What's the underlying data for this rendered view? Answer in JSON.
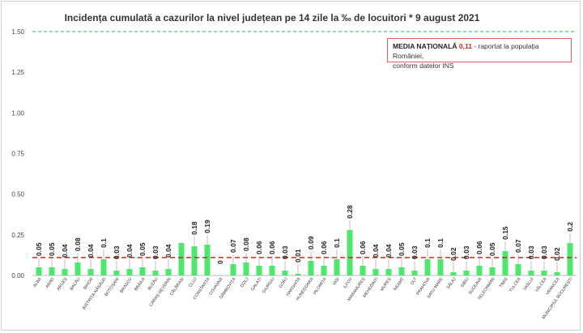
{
  "chart_data": {
    "type": "bar",
    "title": "Incidența cumulată a cazurilor la nivel județean pe 14 zile la ‰ de locuitori *  9 august 2021",
    "xlabel": "",
    "ylabel": "",
    "ylim": [
      0,
      1.5
    ],
    "yticks": [
      "0.00",
      "0.25",
      "0.50",
      "0.75",
      "1.00",
      "1.25",
      "1.50"
    ],
    "grid": false,
    "categories": [
      "ALBA",
      "ARAD",
      "ARGEȘ",
      "BACĂU",
      "BIHOR",
      "BISTRIȚA-NĂSĂUD",
      "BOTOȘANI",
      "BRAȘOV",
      "BRĂILA",
      "BUZĂU",
      "CARAȘ-SEVERIN",
      "CĂLĂRAȘI",
      "CLUJ",
      "CONSTANȚA",
      "COVASNA",
      "DÂMBOVIȚA",
      "DOLJ",
      "GALAȚI",
      "GIURGIU",
      "GORJ",
      "HARGHITA",
      "HUNEDOARA",
      "IALOMIȚA",
      "IAȘI",
      "ILFOV",
      "MARAMUREȘ",
      "MEHEDINȚI",
      "MUREȘ",
      "NEAMȚ",
      "OLT",
      "PRAHOVA",
      "SATU MARE",
      "SĂLAJ",
      "SIBIU",
      "SUCEAVA",
      "TELEORMAN",
      "TIMIȘ",
      "TULCEA",
      "VASLUI",
      "VÂLCEA",
      "VRANCEA",
      "MUNICIPIUL BUCUREȘTI"
    ],
    "values": [
      0.05,
      0.05,
      0.04,
      0.08,
      0.04,
      0.1,
      0.03,
      0.04,
      0.05,
      0.03,
      0.04,
      0.2,
      0.18,
      0.19,
      0,
      0.07,
      0.08,
      0.06,
      0.06,
      0.03,
      0.01,
      0.09,
      0.06,
      0.1,
      0.28,
      0.06,
      0.04,
      0.04,
      0.05,
      0.03,
      0.1,
      0.1,
      0.02,
      0.03,
      0.06,
      0.05,
      0.15,
      0.07,
      0.03,
      0.03,
      0.02,
      0.2
    ],
    "labels": [
      "0.05",
      "0.05",
      "0.04",
      "0.08",
      "0.04",
      "0.1",
      "0.03",
      "0.04",
      "0.05",
      "0.03",
      "0.04",
      "",
      "0.18",
      "0.19",
      "0",
      "0.07",
      "0.08",
      "0.06",
      "0.06",
      "0.03",
      "0.01",
      "0.09",
      "0.06",
      "0.1",
      "0.28",
      "0.06",
      "0.04",
      "0.04",
      "0.05",
      "0.03",
      "0.1",
      "0.1",
      "0.02",
      "0.03",
      "0.06",
      "0.05",
      "0.15",
      "0.07",
      "0.03",
      "0.03",
      "0.02",
      "0.2"
    ],
    "national_average": 0.11,
    "reference_line": 1.5,
    "colors": {
      "bar": "#4ee66e",
      "average_line": "#e02020",
      "reference_line": "#2ab04a"
    }
  },
  "legend": {
    "heading": "MEDIA NAȚIONALĂ",
    "value": "0,11",
    "note_line1": " - raportat la populația României,",
    "note_line2": "conform datelor INS"
  }
}
